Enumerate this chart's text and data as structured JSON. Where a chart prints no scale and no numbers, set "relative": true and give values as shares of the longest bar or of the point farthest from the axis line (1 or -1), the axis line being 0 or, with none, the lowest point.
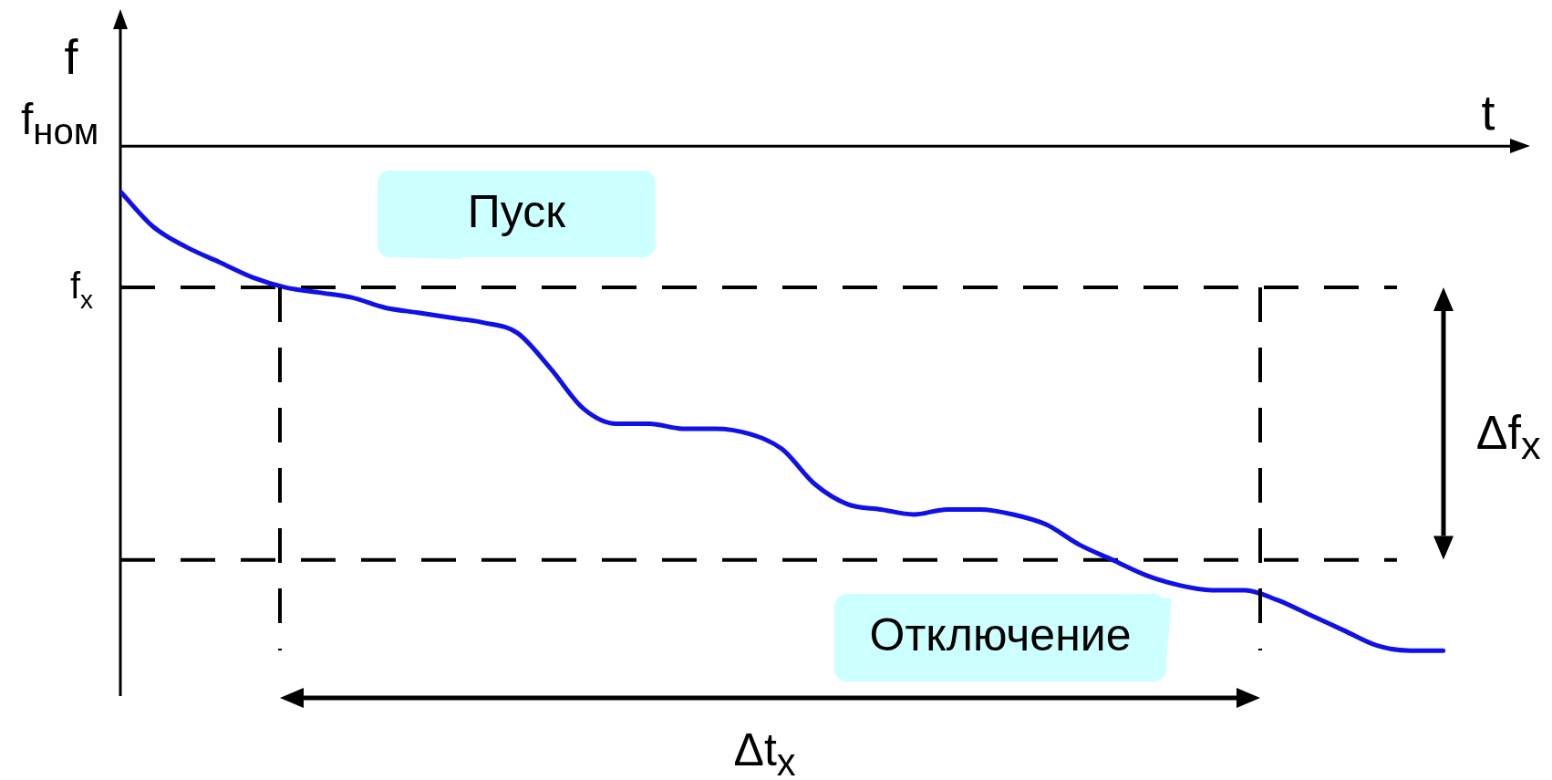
{
  "chart_data": {
    "type": "line",
    "relative": true,
    "xlabel": "t",
    "ylabel": "f",
    "marker": "none",
    "line_style": "solid",
    "categories": [
      null,
      null,
      null,
      null,
      null,
      null,
      null,
      null,
      null,
      null,
      null,
      null,
      null,
      null,
      null,
      null,
      null,
      null,
      null,
      null,
      null,
      null,
      null,
      null,
      null,
      null,
      null,
      null,
      null,
      null,
      null,
      null,
      null,
      null,
      null,
      null,
      null,
      null,
      null,
      null,
      null
    ],
    "series": [
      {
        "color": "#1010e8",
        "values": [
          -0.09,
          -0.16,
          -0.2,
          -0.23,
          -0.26,
          -0.28,
          -0.29,
          -0.3,
          -0.32,
          -0.33,
          -0.34,
          -0.35,
          -0.37,
          -0.44,
          -0.52,
          -0.55,
          -0.55,
          -0.56,
          -0.56,
          -0.57,
          -0.6,
          -0.67,
          -0.71,
          -0.72,
          -0.73,
          -0.72,
          -0.72,
          -0.73,
          -0.75,
          -0.79,
          -0.82,
          -0.85,
          -0.87,
          -0.88,
          -0.88,
          -0.9,
          -0.93,
          -0.96,
          -0.99,
          -1.0,
          -1.0
        ]
      }
    ],
    "ref_lines": [
      {
        "axis": "y",
        "value": -0.28,
        "label": "f$_{x}$",
        "color": "#000000",
        "line_style": "dashed"
      },
      {
        "axis": "y",
        "value": -0.82,
        "color": "#000000",
        "line_style": "dashed"
      }
    ],
    "annotations": [
      "f$_{ном}$",
      "Пуск",
      "Отключение",
      "Δf$_{x}$",
      "Δt$_{x}$"
    ]
  }
}
